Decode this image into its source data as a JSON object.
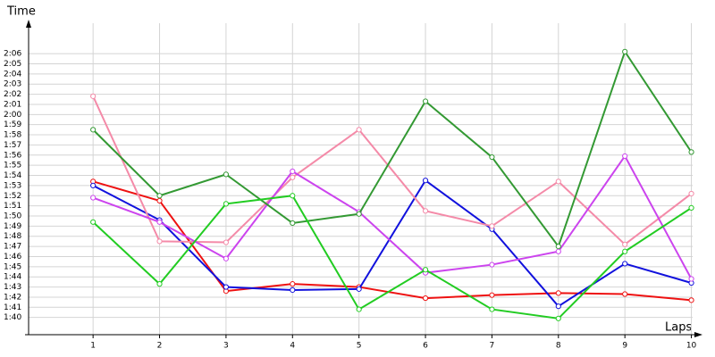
{
  "chart_data": {
    "type": "line",
    "y_label": "Time",
    "x_label": "Laps",
    "x": [
      1,
      2,
      3,
      4,
      5,
      6,
      7,
      8,
      9,
      10
    ],
    "xlim": [
      0.03,
      10.1
    ],
    "xticks": [
      1,
      2,
      3,
      4,
      5,
      6,
      7,
      8,
      9,
      10
    ],
    "ylim": [
      98.3,
      129
    ],
    "yticks": [
      {
        "value": 100,
        "label": "1:40"
      },
      {
        "value": 101,
        "label": "1:41"
      },
      {
        "value": 102,
        "label": "1:42"
      },
      {
        "value": 103,
        "label": "1:43"
      },
      {
        "value": 104,
        "label": "1:44"
      },
      {
        "value": 105,
        "label": "1:45"
      },
      {
        "value": 106,
        "label": "1:46"
      },
      {
        "value": 107,
        "label": "1:47"
      },
      {
        "value": 108,
        "label": "1:48"
      },
      {
        "value": 109,
        "label": "1:49"
      },
      {
        "value": 110,
        "label": "1:50"
      },
      {
        "value": 111,
        "label": "1:51"
      },
      {
        "value": 112,
        "label": "1:52"
      },
      {
        "value": 113,
        "label": "1:53"
      },
      {
        "value": 114,
        "label": "1:54"
      },
      {
        "value": 115,
        "label": "1:55"
      },
      {
        "value": 116,
        "label": "1:56"
      },
      {
        "value": 117,
        "label": "1:57"
      },
      {
        "value": 118,
        "label": "1:58"
      },
      {
        "value": 119,
        "label": "1:59"
      },
      {
        "value": 120,
        "label": "2:00"
      },
      {
        "value": 121,
        "label": "2:01"
      },
      {
        "value": 122,
        "label": "2:02"
      },
      {
        "value": 123,
        "label": "2:03"
      },
      {
        "value": 124,
        "label": "2:04"
      },
      {
        "value": 125,
        "label": "2:05"
      },
      {
        "value": 126,
        "label": "2:06"
      }
    ],
    "grid": true,
    "series": [
      {
        "color": "#ee1111",
        "values": [
          113.4,
          111.5,
          102.6,
          103.3,
          103.0,
          101.9,
          102.2,
          102.4,
          102.3,
          101.7
        ]
      },
      {
        "color": "#1111dd",
        "values": [
          113.0,
          109.6,
          103.0,
          102.7,
          102.8,
          113.5,
          108.7,
          101.1,
          105.3,
          103.4
        ]
      },
      {
        "color": "#f48aa8",
        "values": [
          121.8,
          107.5,
          107.4,
          113.8,
          118.5,
          110.5,
          109.0,
          113.4,
          107.2,
          112.2
        ]
      },
      {
        "color": "#cc44ee",
        "values": [
          111.8,
          109.4,
          105.8,
          114.4,
          110.4,
          104.4,
          105.2,
          106.5,
          115.9,
          103.8
        ]
      },
      {
        "color": "#339933",
        "values": [
          118.5,
          112.0,
          114.1,
          109.3,
          110.2,
          121.3,
          115.8,
          107.0,
          126.2,
          116.3
        ]
      },
      {
        "color": "#22cc22",
        "values": [
          109.4,
          103.3,
          111.2,
          112.0,
          100.8,
          104.7,
          100.8,
          99.9,
          106.5,
          110.8
        ]
      }
    ]
  }
}
